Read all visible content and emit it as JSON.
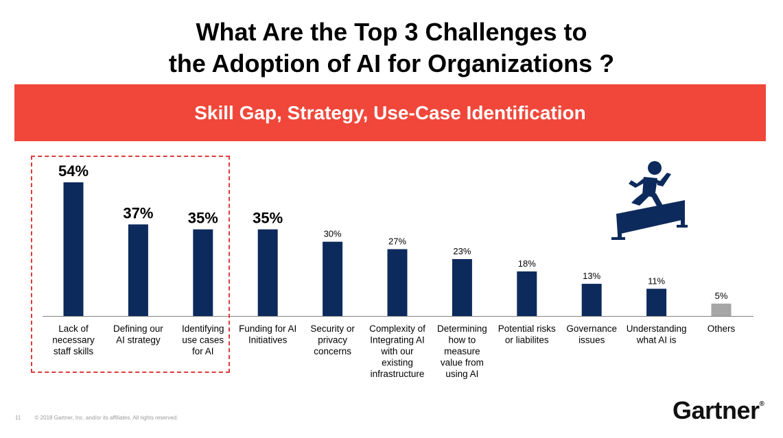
{
  "title": {
    "line1": "What Are the Top 3 Challenges to",
    "line2": "the Adoption of AI for Organizations ?"
  },
  "banner": {
    "text": "Skill Gap, Strategy, Use-Case Identification"
  },
  "footer": {
    "page_number": "11",
    "copyright": "© 2018 Gartner, Inc. and/or its affiliates. All rights reserved."
  },
  "logo": {
    "text": "Gartner",
    "mark": "®"
  },
  "colors": {
    "bar": "#0d2a5c",
    "others_bar": "#a6a6a6",
    "banner": "#f0473a",
    "highlight": "#e03a3a",
    "icon": "#0d2a5c"
  },
  "icon": {
    "name": "hurdle-jumper-icon"
  },
  "chart_data": {
    "type": "bar",
    "title": "What Are the Top 3 Challenges to the Adoption of AI for Organizations ?",
    "xlabel": "",
    "ylabel": "",
    "ylim": [
      0,
      60
    ],
    "unit": "%",
    "categories": [
      [
        "Lack of",
        "necessary",
        "staff skills"
      ],
      [
        "Defining our",
        "AI strategy"
      ],
      [
        "Identifying",
        "use cases",
        "for AI"
      ],
      [
        "Funding for AI",
        "Initiatives"
      ],
      [
        "Security or",
        "privacy",
        "concerns"
      ],
      [
        "Complexity of",
        "Integrating AI",
        "with our",
        "existing",
        "infrastructure"
      ],
      [
        "Determining",
        "how to",
        "measure",
        "value from",
        "using AI"
      ],
      [
        "Potential risks",
        "or liabilites"
      ],
      [
        "Governance",
        "issues"
      ],
      [
        "Understanding",
        "what AI is"
      ],
      [
        "Others"
      ]
    ],
    "values": [
      54,
      37,
      35,
      35,
      30,
      27,
      23,
      18,
      13,
      11,
      5
    ],
    "labels": [
      "54%",
      "37%",
      "35%",
      "35%",
      "30%",
      "27%",
      "23%",
      "18%",
      "13%",
      "11%",
      "5%"
    ],
    "emphasized_labels": [
      0,
      1,
      2,
      3
    ],
    "highlighted_group": [
      0,
      1,
      2
    ]
  }
}
